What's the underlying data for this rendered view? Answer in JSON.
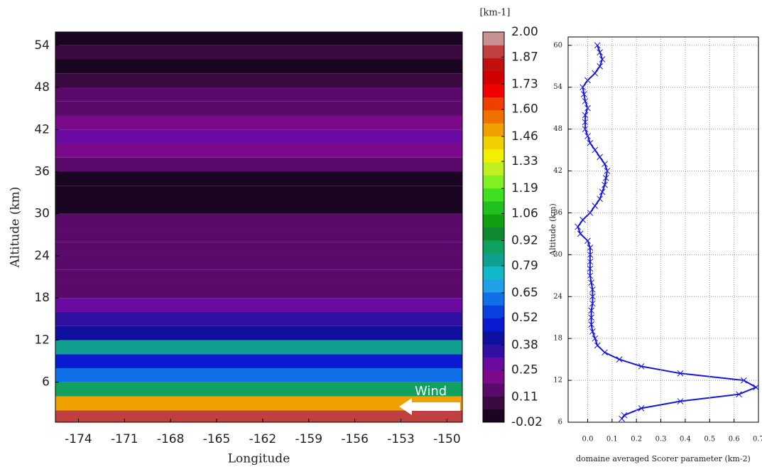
{
  "chart_data": [
    {
      "type": "contour",
      "xlabel": "Longitude",
      "ylabel": "Altitude (km)",
      "annotation": "Wind",
      "xlim": [
        -175.5,
        -149
      ],
      "xticks": [
        -174,
        -171,
        -168,
        -165,
        -162,
        -159,
        -156,
        -153,
        -150
      ],
      "ylim": [
        0.3,
        55.9
      ],
      "yticks": [
        6,
        12,
        18,
        24,
        30,
        36,
        42,
        48,
        54
      ],
      "y": [
        1,
        3,
        5,
        7,
        9,
        11,
        13,
        15,
        17,
        19,
        21,
        23,
        25,
        27,
        29,
        31,
        33,
        35,
        37,
        39,
        41,
        43,
        45,
        47,
        49,
        51,
        53,
        55
      ],
      "values": [
        1.9,
        1.5,
        0.9,
        0.6,
        0.5,
        0.8,
        0.45,
        0.35,
        0.3,
        0.15,
        0.12,
        0.12,
        0.12,
        0.12,
        0.12,
        -0.01,
        -0.01,
        -0.01,
        0.12,
        0.2,
        0.25,
        0.22,
        0.12,
        0.12,
        0.05,
        0.0,
        0.1,
        0.0
      ],
      "colorbar": {
        "label": "[km-1]",
        "lim": [
          -0.02,
          2.0
        ],
        "ticks": [
          -0.02,
          0.11,
          0.25,
          0.38,
          0.52,
          0.65,
          0.79,
          0.92,
          1.06,
          1.19,
          1.33,
          1.46,
          {
            "value": 1.6,
            "label": "1.60"
          },
          1.73,
          1.87,
          {
            "value": 2.0,
            "label": "2.00"
          }
        ],
        "colors": [
          "#1a0522",
          "#3a0a40",
          "#5a0a6a",
          "#7a0a8a",
          "#6a0aa0",
          "#3010a0",
          "#1010a0",
          "#0a1ad0",
          "#0a40e0",
          "#1070e8",
          "#20a0e8",
          "#10b8c8",
          "#10a090",
          "#10a060",
          "#108830",
          "#10a010",
          "#20c020",
          "#40e020",
          "#80f020",
          "#c0f020",
          "#f0f000",
          "#f0d000",
          "#f0a000",
          "#f07000",
          "#f04000",
          "#f00000",
          "#d00000",
          "#c01010",
          "#c04040",
          "#c89090"
        ]
      }
    },
    {
      "type": "line",
      "xlabel": "domaine averaged Scorer parameter (km-2)",
      "ylabel": "Altitude (km)",
      "color": "#1515e0",
      "grid": true,
      "xlim": [
        -0.08,
        0.7
      ],
      "xticks": [
        {
          "value": 0,
          "label": "0.0"
        },
        0.1,
        0.2,
        0.3,
        0.4,
        0.5,
        0.6,
        0.7
      ],
      "ylim": [
        6,
        61.2
      ],
      "yticks": [
        6,
        12,
        18,
        24,
        30,
        36,
        42,
        48,
        54,
        60
      ],
      "y": [
        6.5,
        7,
        8,
        9,
        10,
        11,
        12,
        13,
        14,
        15,
        16,
        17,
        18,
        19,
        20,
        21,
        22,
        23,
        24,
        25,
        26,
        27,
        28,
        29,
        30,
        31,
        32,
        33,
        34,
        35,
        36,
        37,
        38,
        39,
        40,
        41,
        42,
        43,
        44,
        45,
        46,
        47,
        48,
        49,
        50,
        51,
        52,
        53,
        54,
        55,
        56,
        57,
        58,
        59,
        60
      ],
      "x": [
        0.14,
        0.15,
        0.22,
        0.38,
        0.62,
        0.69,
        0.64,
        0.38,
        0.22,
        0.13,
        0.07,
        0.04,
        0.03,
        0.02,
        0.015,
        0.015,
        0.015,
        0.02,
        0.02,
        0.02,
        0.015,
        0.01,
        0.01,
        0.01,
        0.01,
        0.01,
        0.0,
        -0.03,
        -0.04,
        -0.02,
        0.01,
        0.03,
        0.05,
        0.06,
        0.07,
        0.075,
        0.08,
        0.07,
        0.05,
        0.03,
        0.01,
        0.0,
        -0.01,
        -0.01,
        -0.01,
        0.0,
        -0.01,
        -0.015,
        -0.02,
        0.0,
        0.03,
        0.05,
        0.06,
        0.05,
        0.04
      ]
    }
  ]
}
